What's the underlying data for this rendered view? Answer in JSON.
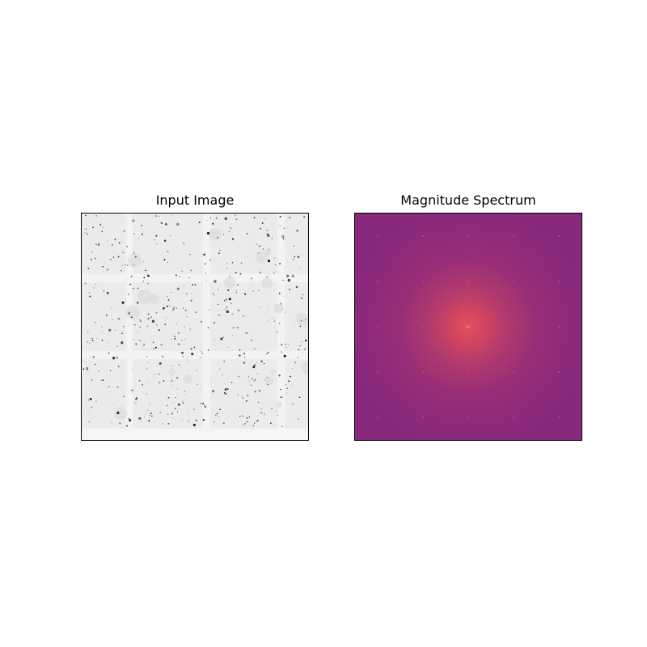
{
  "figure": {
    "panels": [
      {
        "title": "Input Image",
        "image": "grayscale micrograph with grid of light squares and dark speckles"
      },
      {
        "title": "Magnitude Spectrum",
        "image": "2D FFT magnitude spectrum, magma colormap, bright center"
      }
    ]
  },
  "colors": {
    "input_background": "#ececec",
    "input_grid_lines": "#f6f6f6",
    "input_speckle": "#222222",
    "spectrum_base": "#8a2a7c",
    "spectrum_center": "#e2505c"
  }
}
